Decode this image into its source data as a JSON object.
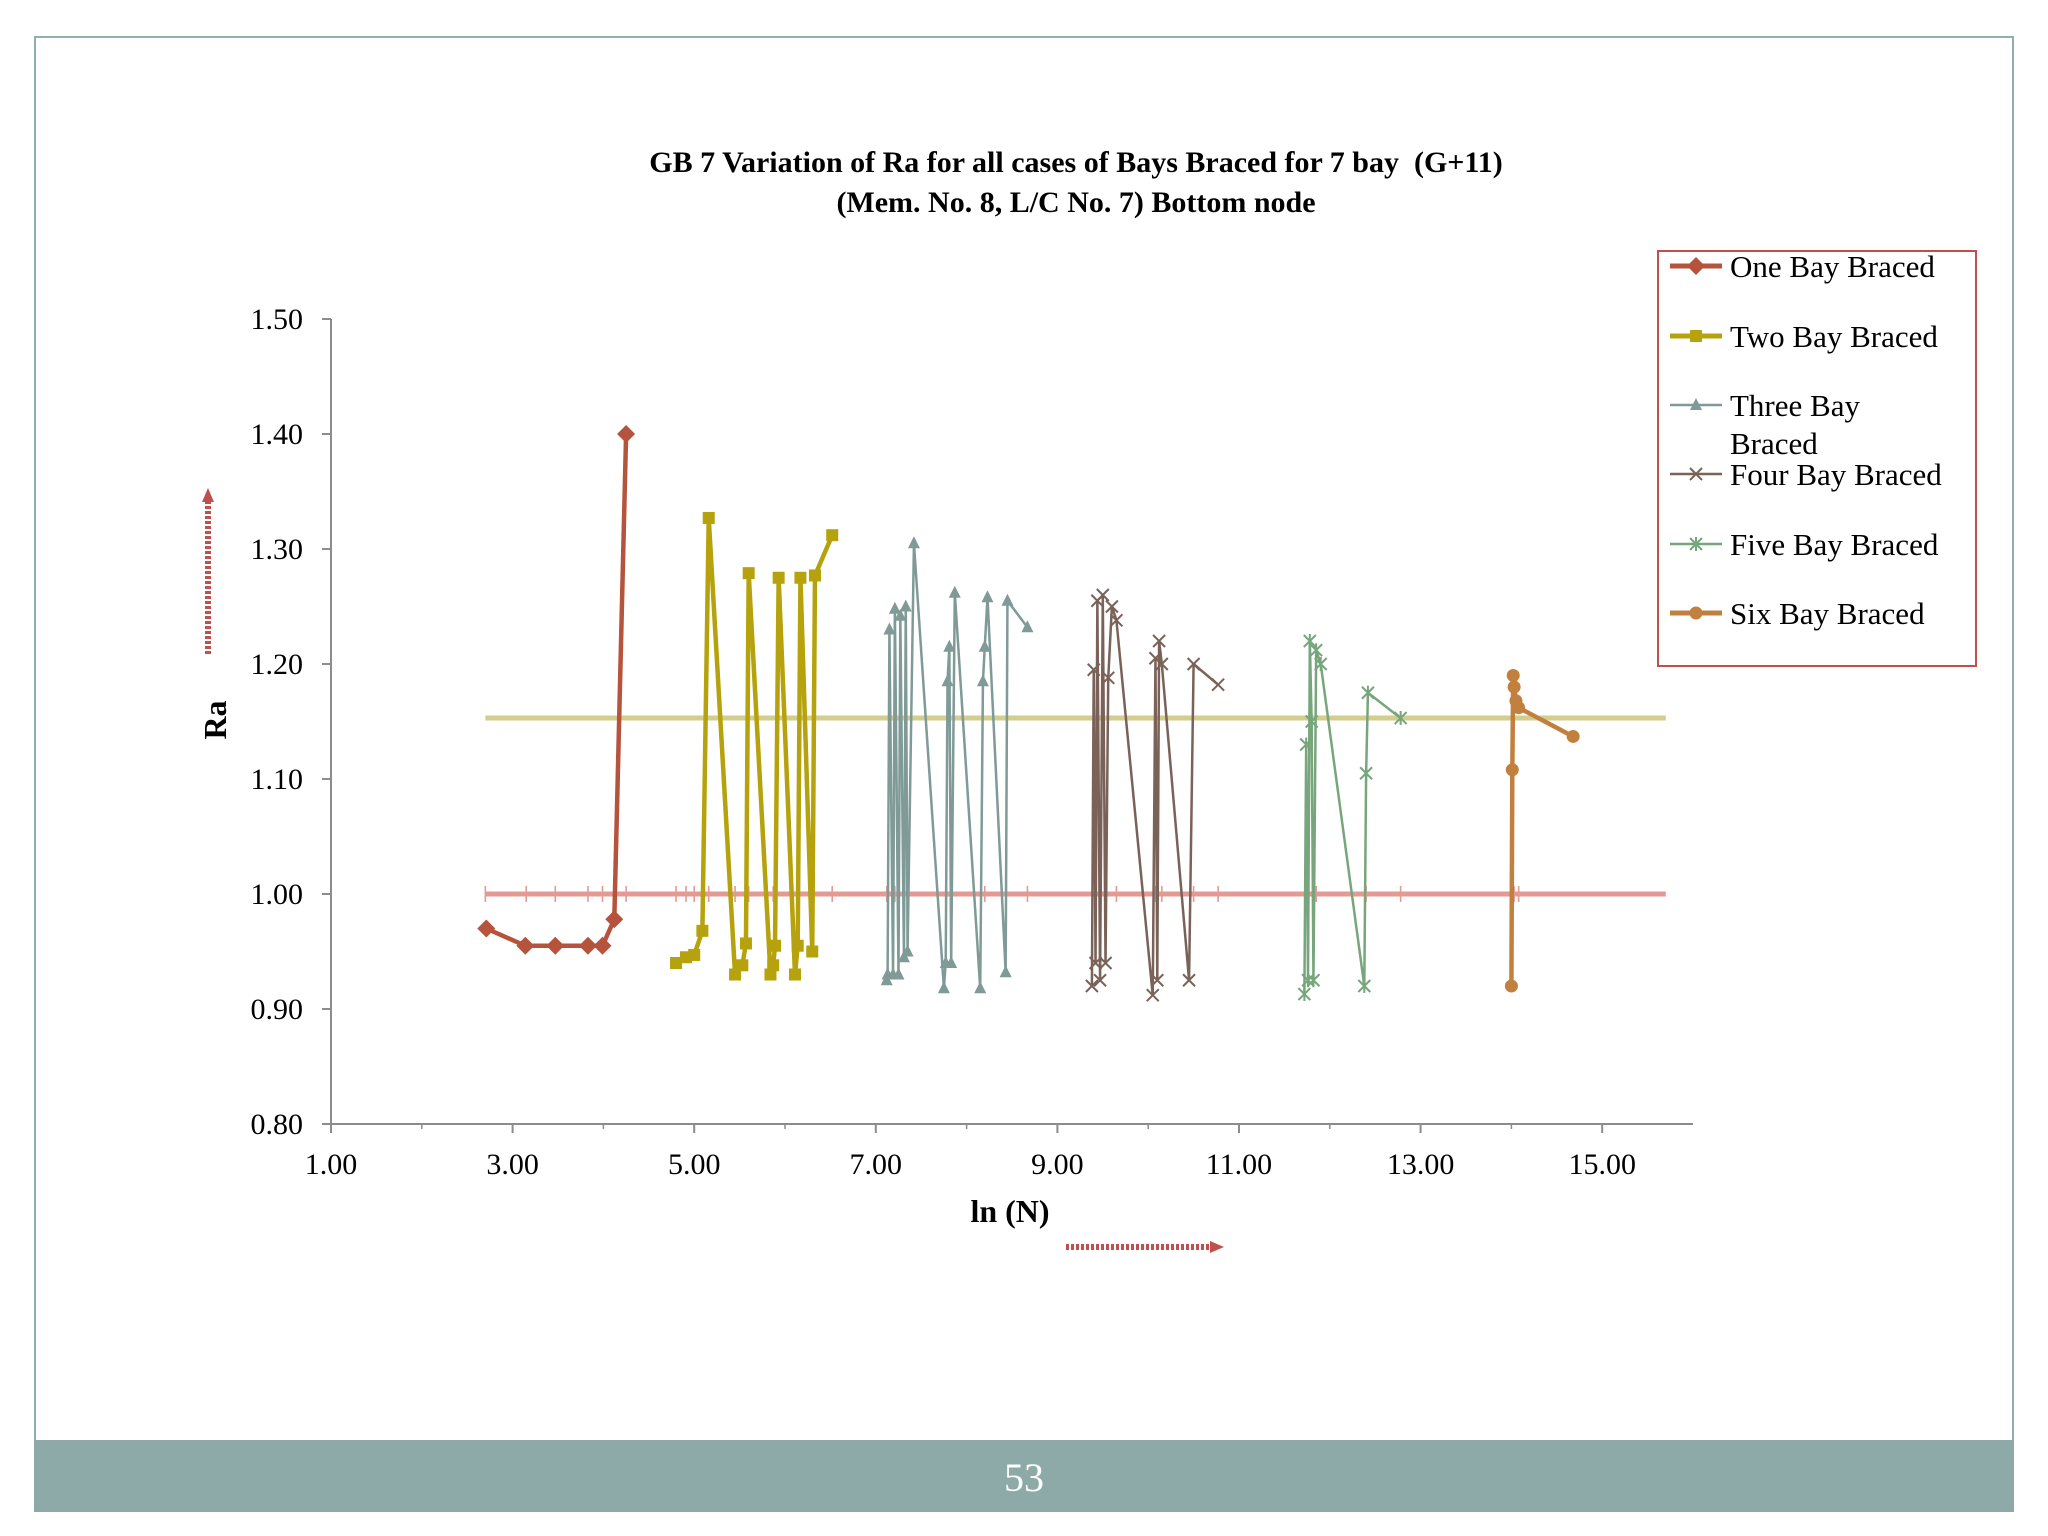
{
  "page": {
    "number": "53",
    "footer_color": "#8eaaa8",
    "frame_color": "#8fb0b2"
  },
  "chart_data": {
    "type": "line",
    "title_line1": "GB 7 Variation of Ra for all cases of Bays Braced for 7 bay  (G+11)",
    "title_line2": "(Mem. No. 8, L/C No. 7) Bottom node",
    "xlabel": "ln (N)",
    "ylabel": "Ra",
    "xlim": [
      1,
      16
    ],
    "ylim": [
      0.8,
      1.5
    ],
    "xticks": [
      1,
      3,
      5,
      7,
      9,
      11,
      13,
      15
    ],
    "yticks": [
      0.8,
      0.9,
      1.0,
      1.1,
      1.2,
      1.3,
      1.4,
      1.5
    ],
    "xtick_labels": [
      "1.00",
      "3.00",
      "5.00",
      "7.00",
      "9.00",
      "11.00",
      "13.00",
      "15.00"
    ],
    "ytick_labels": [
      "0.80",
      "0.90",
      "1.00",
      "1.10",
      "1.20",
      "1.30",
      "1.40",
      "1.50"
    ],
    "legend": {
      "position": "right",
      "border_color": "#c0504d"
    },
    "series": [
      {
        "name": "One Bay Braced",
        "label": "One Bay Braced",
        "color": "#b5533c",
        "marker": "diamond",
        "x": [
          2.71,
          3.14,
          3.47,
          3.83,
          3.99,
          4.12,
          4.25
        ],
        "y": [
          0.97,
          0.955,
          0.955,
          0.955,
          0.955,
          0.978,
          1.4
        ]
      },
      {
        "name": "Two Bay Braced",
        "label": "Two Bay Braced",
        "color": "#b5a20c",
        "marker": "square",
        "x": [
          4.8,
          4.91,
          5.0,
          5.09,
          5.16,
          5.45,
          5.53,
          5.57,
          5.6,
          5.84,
          5.87,
          5.89,
          5.93,
          6.11,
          6.14,
          6.17,
          6.3,
          6.33,
          6.52
        ],
        "y": [
          0.94,
          0.945,
          0.947,
          0.968,
          1.327,
          0.93,
          0.938,
          0.957,
          1.279,
          0.93,
          0.938,
          0.955,
          1.275,
          0.93,
          0.955,
          1.275,
          0.95,
          1.277,
          1.312
        ]
      },
      {
        "name": "Three Bay Braced",
        "label_line1": "Three Bay",
        "label_line2": "Braced",
        "color": "#7f9a97",
        "marker": "triangle",
        "x": [
          7.12,
          7.13,
          7.15,
          7.19,
          7.21,
          7.25,
          7.27,
          7.31,
          7.33,
          7.35,
          7.42,
          7.75,
          7.77,
          7.79,
          7.81,
          7.83,
          7.87,
          8.15,
          8.18,
          8.2,
          8.23,
          8.43,
          8.45,
          8.67
        ],
        "y": [
          0.925,
          0.93,
          1.23,
          0.93,
          1.248,
          0.93,
          1.242,
          0.945,
          1.25,
          0.95,
          1.305,
          0.918,
          0.94,
          1.185,
          1.215,
          0.94,
          1.262,
          0.918,
          1.185,
          1.215,
          1.258,
          0.932,
          1.255,
          1.232
        ]
      },
      {
        "name": "Four Bay Braced",
        "label": "Four Bay Braced",
        "color": "#7a6258",
        "marker": "x",
        "x": [
          9.38,
          9.4,
          9.42,
          9.44,
          9.47,
          9.5,
          9.53,
          9.56,
          9.6,
          9.65,
          10.05,
          10.08,
          10.1,
          10.12,
          10.15,
          10.45,
          10.5,
          10.77
        ],
        "y": [
          0.92,
          1.195,
          0.94,
          1.255,
          0.925,
          1.26,
          0.94,
          1.188,
          1.25,
          1.238,
          0.912,
          1.205,
          0.925,
          1.22,
          1.2,
          0.925,
          1.2,
          1.182
        ]
      },
      {
        "name": "Five Bay Braced",
        "label": "Five Bay Braced",
        "color": "#77a57c",
        "marker": "star",
        "x": [
          11.72,
          11.74,
          11.76,
          11.78,
          11.8,
          11.82,
          11.85,
          11.9,
          12.38,
          12.4,
          12.42,
          12.78
        ],
        "y": [
          0.913,
          1.13,
          0.925,
          1.22,
          1.15,
          0.925,
          1.212,
          1.2,
          0.92,
          1.105,
          1.175,
          1.153
        ]
      },
      {
        "name": "Six Bay Braced",
        "label": "Six Bay Braced",
        "color": "#c2803e",
        "marker": "circle",
        "x": [
          14.0,
          14.01,
          14.02,
          14.03,
          14.05,
          14.08,
          14.68
        ],
        "y": [
          0.92,
          1.108,
          1.19,
          1.18,
          1.168,
          1.162,
          1.137
        ]
      },
      {
        "name": "reference-line-mean",
        "color": "#d3cd8e",
        "x": [
          2.7,
          15.7
        ],
        "y": [
          1.153,
          1.153
        ]
      },
      {
        "name": "reference-line-one",
        "color": "#e39a93",
        "x": [
          2.7,
          15.7
        ],
        "y": [
          1.0,
          1.0
        ],
        "tick_x": [
          2.7,
          3.15,
          3.47,
          3.83,
          3.99,
          4.12,
          4.25,
          4.8,
          4.91,
          5.0,
          5.16,
          5.45,
          5.6,
          5.87,
          6.14,
          6.52,
          7.12,
          7.21,
          7.35,
          7.77,
          7.83,
          8.2,
          8.67,
          9.42,
          9.53,
          9.65,
          10.08,
          10.15,
          10.5,
          10.77,
          11.74,
          11.85,
          12.4,
          12.78,
          14.03,
          14.08
        ]
      }
    ]
  }
}
